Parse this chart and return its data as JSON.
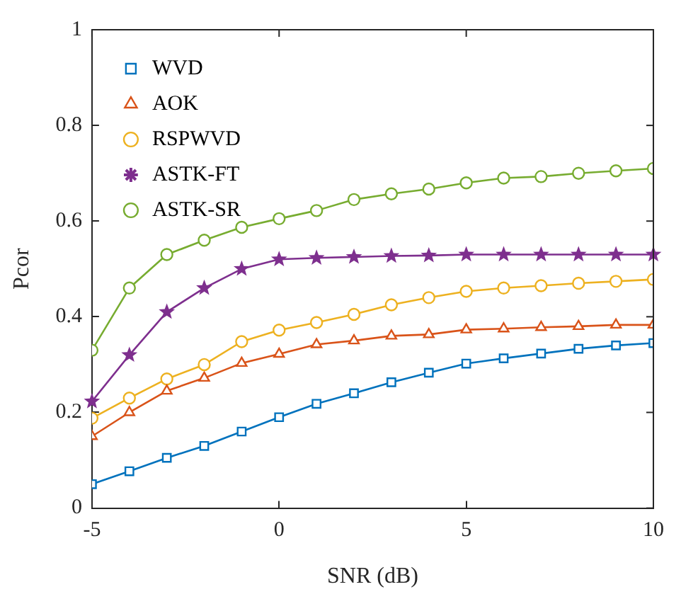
{
  "chart_data": {
    "type": "line",
    "xlabel": "SNR (dB)",
    "ylabel": "Pcor",
    "x": [
      -5,
      -4,
      -3,
      -2,
      -1,
      0,
      1,
      2,
      3,
      4,
      5,
      6,
      7,
      8,
      9,
      10
    ],
    "xlim": [
      -5,
      10
    ],
    "xticks": [
      -5,
      0,
      5,
      10
    ],
    "ylim": [
      0,
      1
    ],
    "yticks": [
      0,
      0.2,
      0.4,
      0.6,
      0.8,
      1
    ],
    "grid": false,
    "legend": "top left",
    "line_style": "solid",
    "series": [
      {
        "name": "WVD",
        "color": "#0072bd",
        "marker": "square",
        "values": [
          0.05,
          0.077,
          0.105,
          0.13,
          0.16,
          0.19,
          0.218,
          0.24,
          0.263,
          0.283,
          0.302,
          0.313,
          0.323,
          0.333,
          0.34,
          0.345
        ]
      },
      {
        "name": "AOK",
        "color": "#d95319",
        "marker": "triangle",
        "values": [
          0.15,
          0.2,
          0.245,
          0.272,
          0.303,
          0.322,
          0.342,
          0.35,
          0.36,
          0.363,
          0.373,
          0.375,
          0.378,
          0.38,
          0.383,
          0.383
        ]
      },
      {
        "name": "RSPWVD",
        "color": "#edb120",
        "marker": "circle",
        "values": [
          0.188,
          0.23,
          0.27,
          0.3,
          0.348,
          0.372,
          0.388,
          0.405,
          0.425,
          0.44,
          0.453,
          0.46,
          0.465,
          0.47,
          0.474,
          0.478
        ]
      },
      {
        "name": "ASTK-FT",
        "color": "#7e2f8e",
        "marker": "star",
        "values": [
          0.223,
          0.32,
          0.41,
          0.46,
          0.5,
          0.52,
          0.523,
          0.525,
          0.527,
          0.528,
          0.53,
          0.53,
          0.53,
          0.53,
          0.53,
          0.53
        ]
      },
      {
        "name": "ASTK-SR",
        "color": "#77ac30",
        "marker": "circle",
        "values": [
          0.33,
          0.46,
          0.53,
          0.56,
          0.587,
          0.605,
          0.622,
          0.645,
          0.657,
          0.667,
          0.68,
          0.69,
          0.693,
          0.7,
          0.705,
          0.71
        ]
      }
    ]
  }
}
